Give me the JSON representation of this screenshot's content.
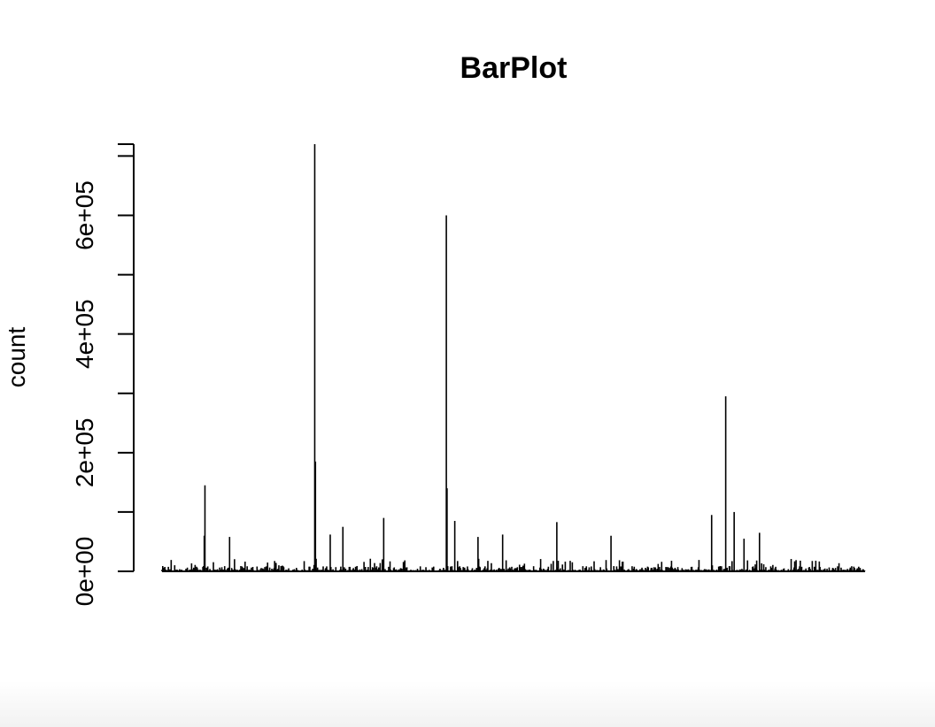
{
  "chart_data": {
    "type": "bar",
    "title": "BarPlot",
    "xlabel": "",
    "ylabel": "count",
    "ylim": [
      0,
      720000
    ],
    "yticks": [
      0,
      200000,
      400000,
      600000
    ],
    "ytick_labels": [
      "0e+00",
      "2e+05",
      "4e+05",
      "6e+05"
    ],
    "grid": false,
    "bar_color": "#000000",
    "peaks": [
      {
        "position": 0.061,
        "value": 145000
      },
      {
        "position": 0.06,
        "value": 60000
      },
      {
        "position": 0.217,
        "value": 720000
      },
      {
        "position": 0.218,
        "value": 185000
      },
      {
        "position": 0.404,
        "value": 600000
      },
      {
        "position": 0.405,
        "value": 140000
      },
      {
        "position": 0.802,
        "value": 295000
      },
      {
        "position": 0.782,
        "value": 95000
      },
      {
        "position": 0.814,
        "value": 100000
      },
      {
        "position": 0.315,
        "value": 90000
      },
      {
        "position": 0.257,
        "value": 75000
      },
      {
        "position": 0.562,
        "value": 83000
      },
      {
        "position": 0.639,
        "value": 60000
      },
      {
        "position": 0.416,
        "value": 85000
      },
      {
        "position": 0.096,
        "value": 58000
      },
      {
        "position": 0.239,
        "value": 62000
      },
      {
        "position": 0.449,
        "value": 58000
      },
      {
        "position": 0.484,
        "value": 62000
      },
      {
        "position": 0.85,
        "value": 65000
      },
      {
        "position": 0.828,
        "value": 55000
      }
    ],
    "n_bars": 1000,
    "baseline_max": 22000
  }
}
